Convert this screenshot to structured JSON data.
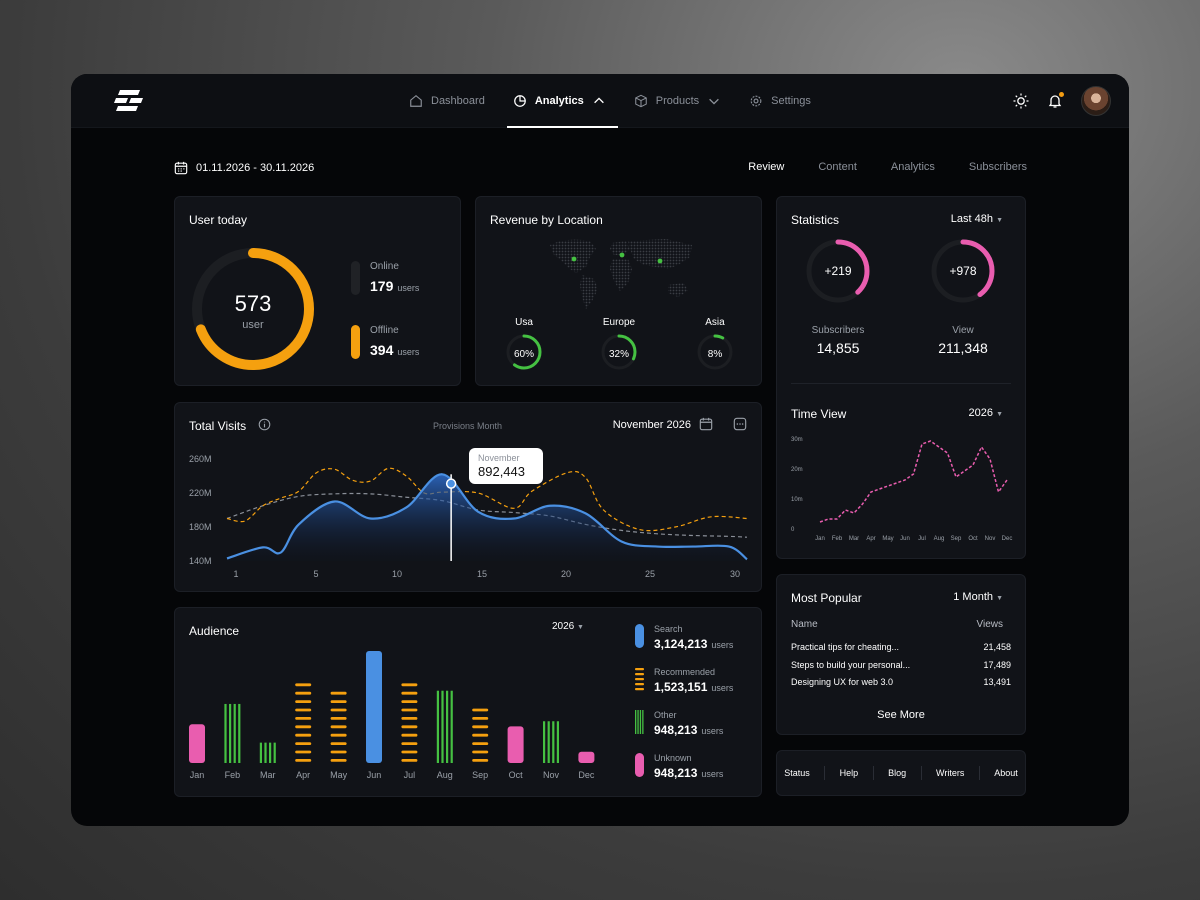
{
  "nav": {
    "items": [
      {
        "label": "Dashboard"
      },
      {
        "label": "Analytics"
      },
      {
        "label": "Products"
      },
      {
        "label": "Settings"
      }
    ]
  },
  "filters": {
    "date_range": "01.11.2026 - 30.11.2026",
    "tabs": [
      "Review",
      "Content",
      "Analytics",
      "Subscribers"
    ]
  },
  "user_today": {
    "title": "User today",
    "total": "573",
    "total_label": "user",
    "progress_fraction": 0.69,
    "online_label": "Online",
    "online_value": "179",
    "offline_label": "Offline",
    "offline_value": "394",
    "unit": "users",
    "colors": {
      "offline": "#f5a00f",
      "online": "#202226"
    }
  },
  "revenue": {
    "title": "Revenue by Location",
    "locations": [
      {
        "name": "Usa",
        "pct": "60%",
        "fraction": 0.6
      },
      {
        "name": "Europe",
        "pct": "32%",
        "fraction": 0.32
      },
      {
        "name": "Asia",
        "pct": "8%",
        "fraction": 0.08
      }
    ],
    "accent": "#45c142"
  },
  "total_visits": {
    "title": "Total Visits",
    "hint": "Provisions Month",
    "month": "November 2026",
    "tooltip_month": "November",
    "tooltip_value": "892,443",
    "selected_day": 13.5,
    "chart_data": {
      "type": "area",
      "y_ticks": [
        "260M",
        "220M",
        "180M",
        "140M"
      ],
      "x_ticks": [
        "1",
        "5",
        "10",
        "15",
        "20",
        "25",
        "30"
      ],
      "ylim": [
        140,
        260
      ],
      "xlim": [
        1,
        30
      ],
      "series": [
        {
          "color": "#4a90e2",
          "style": "area",
          "x": [
            1,
            3,
            4,
            5,
            7,
            9,
            11,
            13,
            15,
            17,
            19,
            21,
            23,
            25,
            27,
            29,
            30
          ],
          "y": [
            143,
            156,
            150,
            183,
            210,
            190,
            203,
            242,
            198,
            190,
            205,
            196,
            163,
            157,
            157,
            157,
            142
          ]
        },
        {
          "color": "#f5a00f",
          "style": "dashed",
          "x": [
            1,
            2,
            3,
            4,
            5,
            6,
            7,
            8,
            9,
            10,
            11,
            12,
            13,
            15,
            17,
            18,
            20,
            21,
            22,
            24,
            26,
            28,
            30
          ],
          "y": [
            190,
            187,
            205,
            214,
            222,
            244,
            248,
            235,
            234,
            249,
            240,
            220,
            221,
            220,
            202,
            222,
            244,
            238,
            200,
            177,
            180,
            192,
            190
          ]
        },
        {
          "color": "#8a8f98",
          "style": "dashed",
          "x": [
            1,
            3,
            5,
            7,
            9,
            11,
            13,
            15,
            17,
            19,
            21,
            23,
            25,
            27,
            29,
            30
          ],
          "y": [
            190,
            205,
            216,
            219,
            219,
            215,
            211,
            200,
            197,
            193,
            183,
            176,
            172,
            170,
            169,
            168
          ]
        }
      ]
    }
  },
  "audience": {
    "title": "Audience",
    "year": "2026",
    "chart_data": {
      "type": "bar",
      "categories": [
        "Jan",
        "Feb",
        "Mar",
        "Apr",
        "May",
        "Jun",
        "Jul",
        "Aug",
        "Sep",
        "Oct",
        "Nov",
        "Dec"
      ],
      "values": [
        38,
        58,
        20,
        85,
        75,
        110,
        85,
        71,
        55,
        36,
        41,
        11
      ],
      "styles": [
        "solid",
        "lines",
        "lines",
        "dashes",
        "dashes",
        "solid",
        "dashes",
        "lines",
        "dashes",
        "solid",
        "lines",
        "solid"
      ],
      "colors": [
        "#e95daf",
        "#45c142",
        "#45c142",
        "#f5a00f",
        "#f5a00f",
        "#4a90e2",
        "#f5a00f",
        "#45c142",
        "#f5a00f",
        "#e95daf",
        "#45c142",
        "#e95daf"
      ]
    },
    "legend": [
      {
        "label": "Search",
        "value": "3,124,213",
        "unit": "users",
        "color": "#4a90e2",
        "style": "solid"
      },
      {
        "label": "Recommended",
        "value": "1,523,151",
        "unit": "users",
        "color": "#f5a00f",
        "style": "dashes"
      },
      {
        "label": "Other",
        "value": "948,213",
        "unit": "users",
        "color": "#45c142",
        "style": "lines"
      },
      {
        "label": "Unknown",
        "value": "948,213",
        "unit": "users",
        "color": "#e95daf",
        "style": "solid"
      }
    ]
  },
  "statistics": {
    "title": "Statistics",
    "range": "Last 48h",
    "items": [
      {
        "delta": "+219",
        "label": "Subscribers",
        "value": "14,855",
        "fraction": 0.38
      },
      {
        "delta": "+978",
        "label": "View",
        "value": "211,348",
        "fraction": 0.4
      }
    ],
    "accent": "#e95daf"
  },
  "time_view": {
    "title": "Time View",
    "year": "2026",
    "chart_data": {
      "type": "line",
      "y_ticks": [
        "30m",
        "20m",
        "10m",
        "0"
      ],
      "ylim": [
        0,
        30
      ],
      "categories": [
        "Jan",
        "Feb",
        "Mar",
        "Apr",
        "May",
        "Jun",
        "Jul",
        "Aug",
        "Sep",
        "Oct",
        "Nov",
        "Dec"
      ],
      "x": [
        0,
        0.5,
        1,
        1.5,
        2,
        2.5,
        3,
        3.5,
        4,
        4.5,
        5,
        5.5,
        6,
        6.5,
        7,
        7.5,
        8,
        8.5,
        9,
        9.5,
        10,
        10.5,
        11
      ],
      "y": [
        2,
        3,
        3,
        6,
        5,
        8,
        12,
        13,
        14,
        15,
        16,
        18,
        28,
        29,
        27,
        25,
        17,
        19,
        21,
        27,
        23,
        12,
        16
      ],
      "color": "#e95daf"
    }
  },
  "most_popular": {
    "title": "Most Popular",
    "range": "1 Month",
    "col_name": "Name",
    "col_views": "Views",
    "rows": [
      {
        "name": "Practical tips for cheating...",
        "views": "21,458"
      },
      {
        "name": "Steps to build your personal...",
        "views": "17,489"
      },
      {
        "name": "Designing UX for web 3.0",
        "views": "13,491"
      }
    ],
    "see_more": "See More"
  },
  "footer": {
    "links": [
      "Status",
      "Help",
      "Blog",
      "Writers",
      "About"
    ]
  }
}
